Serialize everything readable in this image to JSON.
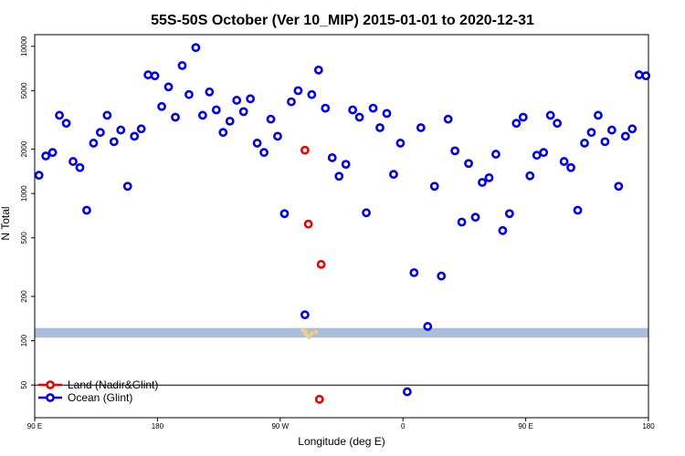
{
  "chart_data": {
    "type": "scatter",
    "title": "55S-50S October (Ver 10_MIP)   2015-01-01 to 2020-12-31",
    "xlabel": "Longitude (deg E)",
    "ylabel": "N Total",
    "x_ticks": [
      "90 E",
      "180",
      "90 W",
      "0",
      "90 E",
      "180"
    ],
    "y_ticks": [
      "50",
      "100",
      "200",
      "500",
      "1000",
      "2000",
      "5000",
      "10000"
    ],
    "xlim": [
      90,
      450
    ],
    "ylim": [
      30,
      12000
    ],
    "y_scale": "log",
    "band": {
      "from": 105,
      "to": 122,
      "color": "#a9bedb"
    },
    "reference_line": 50,
    "series": [
      {
        "name": "Ocean (Glint)",
        "color": "#0000ee",
        "points": [
          [
            92.5,
            1330
          ],
          [
            96.5,
            1800
          ],
          [
            100.5,
            1900
          ],
          [
            104.5,
            3400
          ],
          [
            108.5,
            3000
          ],
          [
            112.5,
            1650
          ],
          [
            116.5,
            1500
          ],
          [
            120.5,
            770
          ],
          [
            124.5,
            2200
          ],
          [
            128.5,
            2600
          ],
          [
            132.5,
            3400
          ],
          [
            136.5,
            2250
          ],
          [
            140.5,
            2700
          ],
          [
            144.5,
            1120
          ],
          [
            148.5,
            2450
          ],
          [
            152.5,
            2750
          ],
          [
            156.5,
            6400
          ],
          [
            160.5,
            6300
          ],
          [
            164.5,
            3900
          ],
          [
            168.5,
            5300
          ],
          [
            172.5,
            3300
          ],
          [
            176.5,
            7400
          ],
          [
            180.5,
            4700
          ],
          [
            184.5,
            9800
          ],
          [
            188.5,
            3400
          ],
          [
            192.5,
            4900
          ],
          [
            196.5,
            3700
          ],
          [
            200.5,
            2600
          ],
          [
            204.5,
            3100
          ],
          [
            208.5,
            4300
          ],
          [
            212.5,
            3600
          ],
          [
            216.5,
            4400
          ],
          [
            220.5,
            2200
          ],
          [
            224.5,
            1900
          ],
          [
            228.5,
            3200
          ],
          [
            232.5,
            2450
          ],
          [
            236.5,
            730
          ],
          [
            240.5,
            4200
          ],
          [
            244.5,
            5000
          ],
          [
            248.5,
            150
          ],
          [
            252.5,
            4700
          ],
          [
            256.5,
            6900
          ],
          [
            260.5,
            3800
          ],
          [
            264.5,
            1750
          ],
          [
            268.5,
            1310
          ],
          [
            272.5,
            1580
          ],
          [
            276.5,
            3700
          ],
          [
            280.5,
            3300
          ],
          [
            284.5,
            740
          ],
          [
            288.5,
            3800
          ],
          [
            292.5,
            2800
          ],
          [
            296.5,
            3500
          ],
          [
            300.5,
            1350
          ],
          [
            304.5,
            2200
          ],
          [
            308.5,
            45
          ],
          [
            312.5,
            290
          ],
          [
            316.5,
            2800
          ],
          [
            320.5,
            125
          ],
          [
            324.5,
            1120
          ],
          [
            328.5,
            275
          ],
          [
            332.5,
            3200
          ],
          [
            336.5,
            1950
          ],
          [
            340.5,
            640
          ],
          [
            344.5,
            1600
          ],
          [
            348.5,
            690
          ],
          [
            352.5,
            1190
          ],
          [
            356.5,
            1280
          ],
          [
            360.5,
            1850
          ],
          [
            364.5,
            560
          ],
          [
            368.5,
            730
          ],
          [
            372.5,
            3000
          ],
          [
            376.5,
            3300
          ],
          [
            380.5,
            1320
          ],
          [
            384.5,
            1820
          ],
          [
            388.5,
            1900
          ],
          [
            392.5,
            3400
          ],
          [
            396.5,
            3000
          ],
          [
            400.5,
            1650
          ],
          [
            404.5,
            1500
          ],
          [
            408.5,
            770
          ],
          [
            412.5,
            2200
          ],
          [
            416.5,
            2600
          ],
          [
            420.5,
            3400
          ],
          [
            424.5,
            2250
          ],
          [
            428.5,
            2700
          ],
          [
            432.5,
            1120
          ],
          [
            436.5,
            2450
          ],
          [
            440.5,
            2750
          ],
          [
            444.5,
            6400
          ],
          [
            448.5,
            6300
          ]
        ]
      },
      {
        "name": "Land (Nadir&Glint)",
        "color": "#ee0000",
        "points": [
          [
            248.5,
            1970
          ],
          [
            250.5,
            620
          ],
          [
            258,
            330
          ],
          [
            257,
            40
          ]
        ]
      }
    ],
    "land_mask": {
      "color": "#f2cf80",
      "points": [
        [
          247.5,
          118
        ],
        [
          248.3,
          114
        ],
        [
          249.2,
          111
        ],
        [
          250.1,
          108
        ],
        [
          251,
          106
        ],
        [
          249,
          116
        ],
        [
          252.5,
          112
        ],
        [
          255,
          115
        ]
      ]
    },
    "legend": {
      "position": "bottom-left",
      "entries": [
        "Land (Nadir&Glint)",
        "Ocean (Glint)"
      ]
    }
  }
}
